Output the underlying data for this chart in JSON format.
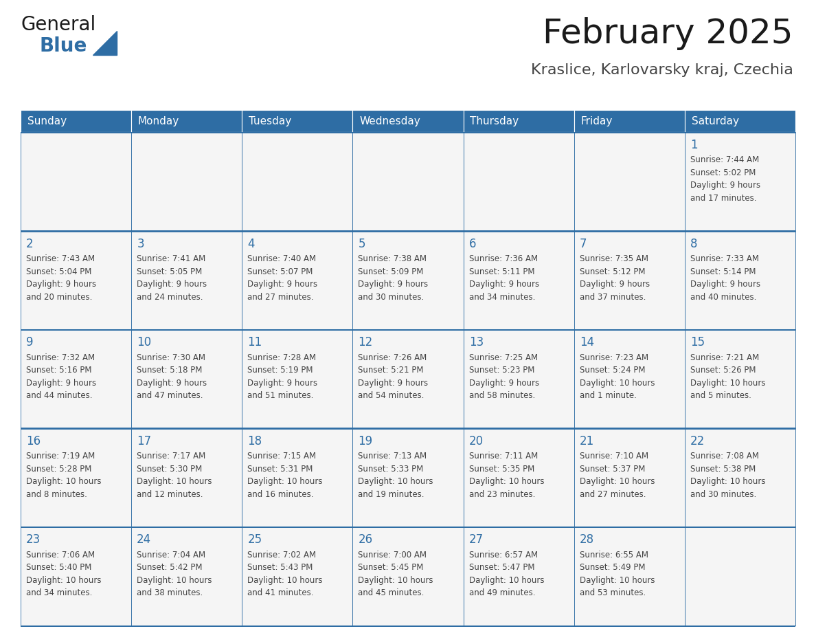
{
  "title": "February 2025",
  "subtitle": "Kraslice, Karlovarsky kraj, Czechia",
  "header_bg": "#2E6DA4",
  "header_text_color": "#FFFFFF",
  "cell_bg": "#F5F5F5",
  "day_number_color": "#2E6DA4",
  "text_color": "#444444",
  "border_color": "#2E6DA4",
  "days_of_week": [
    "Sunday",
    "Monday",
    "Tuesday",
    "Wednesday",
    "Thursday",
    "Friday",
    "Saturday"
  ],
  "weeks": [
    [
      {
        "day": null,
        "info": null
      },
      {
        "day": null,
        "info": null
      },
      {
        "day": null,
        "info": null
      },
      {
        "day": null,
        "info": null
      },
      {
        "day": null,
        "info": null
      },
      {
        "day": null,
        "info": null
      },
      {
        "day": 1,
        "info": "Sunrise: 7:44 AM\nSunset: 5:02 PM\nDaylight: 9 hours\nand 17 minutes."
      }
    ],
    [
      {
        "day": 2,
        "info": "Sunrise: 7:43 AM\nSunset: 5:04 PM\nDaylight: 9 hours\nand 20 minutes."
      },
      {
        "day": 3,
        "info": "Sunrise: 7:41 AM\nSunset: 5:05 PM\nDaylight: 9 hours\nand 24 minutes."
      },
      {
        "day": 4,
        "info": "Sunrise: 7:40 AM\nSunset: 5:07 PM\nDaylight: 9 hours\nand 27 minutes."
      },
      {
        "day": 5,
        "info": "Sunrise: 7:38 AM\nSunset: 5:09 PM\nDaylight: 9 hours\nand 30 minutes."
      },
      {
        "day": 6,
        "info": "Sunrise: 7:36 AM\nSunset: 5:11 PM\nDaylight: 9 hours\nand 34 minutes."
      },
      {
        "day": 7,
        "info": "Sunrise: 7:35 AM\nSunset: 5:12 PM\nDaylight: 9 hours\nand 37 minutes."
      },
      {
        "day": 8,
        "info": "Sunrise: 7:33 AM\nSunset: 5:14 PM\nDaylight: 9 hours\nand 40 minutes."
      }
    ],
    [
      {
        "day": 9,
        "info": "Sunrise: 7:32 AM\nSunset: 5:16 PM\nDaylight: 9 hours\nand 44 minutes."
      },
      {
        "day": 10,
        "info": "Sunrise: 7:30 AM\nSunset: 5:18 PM\nDaylight: 9 hours\nand 47 minutes."
      },
      {
        "day": 11,
        "info": "Sunrise: 7:28 AM\nSunset: 5:19 PM\nDaylight: 9 hours\nand 51 minutes."
      },
      {
        "day": 12,
        "info": "Sunrise: 7:26 AM\nSunset: 5:21 PM\nDaylight: 9 hours\nand 54 minutes."
      },
      {
        "day": 13,
        "info": "Sunrise: 7:25 AM\nSunset: 5:23 PM\nDaylight: 9 hours\nand 58 minutes."
      },
      {
        "day": 14,
        "info": "Sunrise: 7:23 AM\nSunset: 5:24 PM\nDaylight: 10 hours\nand 1 minute."
      },
      {
        "day": 15,
        "info": "Sunrise: 7:21 AM\nSunset: 5:26 PM\nDaylight: 10 hours\nand 5 minutes."
      }
    ],
    [
      {
        "day": 16,
        "info": "Sunrise: 7:19 AM\nSunset: 5:28 PM\nDaylight: 10 hours\nand 8 minutes."
      },
      {
        "day": 17,
        "info": "Sunrise: 7:17 AM\nSunset: 5:30 PM\nDaylight: 10 hours\nand 12 minutes."
      },
      {
        "day": 18,
        "info": "Sunrise: 7:15 AM\nSunset: 5:31 PM\nDaylight: 10 hours\nand 16 minutes."
      },
      {
        "day": 19,
        "info": "Sunrise: 7:13 AM\nSunset: 5:33 PM\nDaylight: 10 hours\nand 19 minutes."
      },
      {
        "day": 20,
        "info": "Sunrise: 7:11 AM\nSunset: 5:35 PM\nDaylight: 10 hours\nand 23 minutes."
      },
      {
        "day": 21,
        "info": "Sunrise: 7:10 AM\nSunset: 5:37 PM\nDaylight: 10 hours\nand 27 minutes."
      },
      {
        "day": 22,
        "info": "Sunrise: 7:08 AM\nSunset: 5:38 PM\nDaylight: 10 hours\nand 30 minutes."
      }
    ],
    [
      {
        "day": 23,
        "info": "Sunrise: 7:06 AM\nSunset: 5:40 PM\nDaylight: 10 hours\nand 34 minutes."
      },
      {
        "day": 24,
        "info": "Sunrise: 7:04 AM\nSunset: 5:42 PM\nDaylight: 10 hours\nand 38 minutes."
      },
      {
        "day": 25,
        "info": "Sunrise: 7:02 AM\nSunset: 5:43 PM\nDaylight: 10 hours\nand 41 minutes."
      },
      {
        "day": 26,
        "info": "Sunrise: 7:00 AM\nSunset: 5:45 PM\nDaylight: 10 hours\nand 45 minutes."
      },
      {
        "day": 27,
        "info": "Sunrise: 6:57 AM\nSunset: 5:47 PM\nDaylight: 10 hours\nand 49 minutes."
      },
      {
        "day": 28,
        "info": "Sunrise: 6:55 AM\nSunset: 5:49 PM\nDaylight: 10 hours\nand 53 minutes."
      },
      {
        "day": null,
        "info": null
      }
    ]
  ],
  "logo_general_color": "#1a1a1a",
  "logo_blue_color": "#2E6DA4",
  "title_fontsize": 36,
  "subtitle_fontsize": 16,
  "header_fontsize": 11,
  "day_num_fontsize": 12,
  "info_fontsize": 8.5
}
